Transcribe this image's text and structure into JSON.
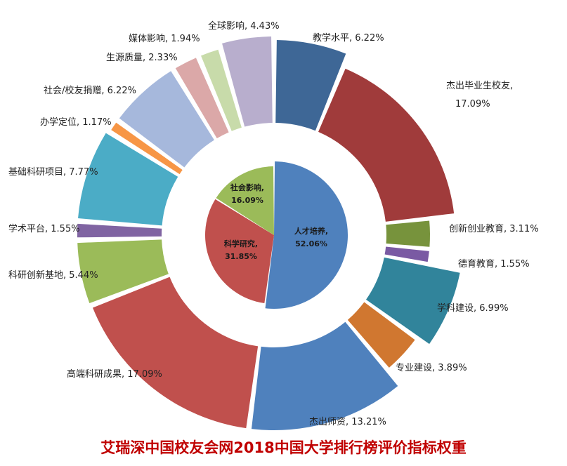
{
  "chart_data": {
    "type": "pie",
    "subtype": "donut-nested",
    "title": "艾瑞深中国校友会网2018中国大学排行榜评价指标权重",
    "inner": [
      {
        "name": "人才培养",
        "value": 52.06,
        "label": "人才培养,",
        "value_label": "52.06%",
        "color": "#4f81bd"
      },
      {
        "name": "科学研究",
        "value": 31.85,
        "label": "科学研究,",
        "value_label": "31.85%",
        "color": "#c0504d"
      },
      {
        "name": "社会影响",
        "value": 16.09,
        "label": "社会影响,",
        "value_label": "16.09%",
        "color": "#9bbb59"
      }
    ],
    "outer": [
      {
        "name": "教学水平",
        "value": 6.22,
        "label": "教学水平, 6.22%",
        "color": "#3e6796"
      },
      {
        "name": "杰出毕业生校友",
        "value": 17.09,
        "label": "杰出毕业生校友,",
        "label2": "17.09%",
        "color": "#a03b3b"
      },
      {
        "name": "创新创业教育",
        "value": 3.11,
        "label": "创新创业教育, 3.11%",
        "color": "#77933c"
      },
      {
        "name": "德育教育",
        "value": 1.55,
        "label": "德育教育, 1.55%",
        "color": "#7a5aa3"
      },
      {
        "name": "学科建设",
        "value": 6.99,
        "label": "学科建设, 6.99%",
        "color": "#31849b"
      },
      {
        "name": "专业建设",
        "value": 3.89,
        "label": "专业建设, 3.89%",
        "color": "#d07730"
      },
      {
        "name": "杰出师资",
        "value": 13.21,
        "label": "杰出师资, 13.21%",
        "color": "#4f81bd"
      },
      {
        "name": "高端科研成果",
        "value": 17.09,
        "label": "高端科研成果, 17.09%",
        "color": "#c0504d"
      },
      {
        "name": "科研创新基地",
        "value": 5.44,
        "label": "科研创新基地, 5.44%",
        "color": "#9bbb59"
      },
      {
        "name": "学术平台",
        "value": 1.55,
        "label": "学术平台, 1.55%",
        "color": "#8064a2"
      },
      {
        "name": "基础科研项目",
        "value": 7.77,
        "label": "基础科研项目, 7.77%",
        "color": "#4bacc6"
      },
      {
        "name": "办学定位",
        "value": 1.17,
        "label": "办学定位, 1.17%",
        "color": "#f79646"
      },
      {
        "name": "社会/校友捐赠",
        "value": 6.22,
        "label": "社会/校友捐赠, 6.22%",
        "color": "#a6b8dc"
      },
      {
        "name": "生源质量",
        "value": 2.33,
        "label": "生源质量, 2.33%",
        "color": "#dba8a8"
      },
      {
        "name": "媒体影响",
        "value": 1.94,
        "label": "媒体影响, 1.94%",
        "color": "#c8dbaa"
      },
      {
        "name": "全球影响",
        "value": 4.43,
        "label": "全球影响, 4.43%",
        "color": "#b8aecd"
      }
    ]
  }
}
